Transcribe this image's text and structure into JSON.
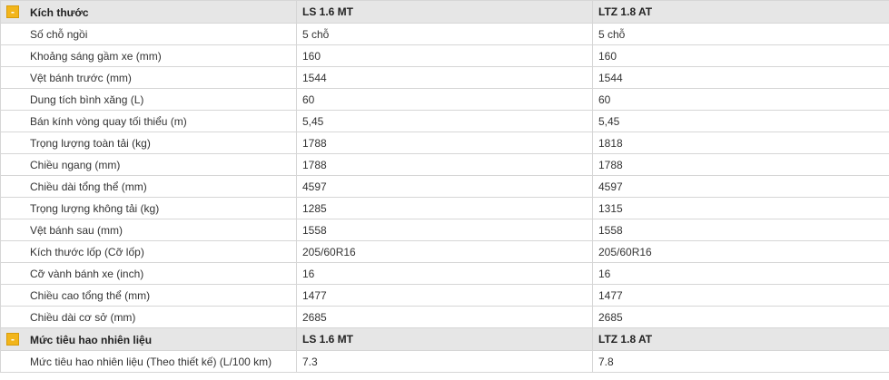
{
  "sections": [
    {
      "title": "Kích thước",
      "toggle": "-",
      "col1": "LS 1.6 MT",
      "col2": "LTZ 1.8 AT",
      "rows": [
        {
          "label": "Số chỗ ngồi",
          "v1": "5 chỗ",
          "v2": "5 chỗ"
        },
        {
          "label": "Khoảng sáng gầm xe (mm)",
          "v1": "160",
          "v2": "160"
        },
        {
          "label": "Vệt bánh trước (mm)",
          "v1": "1544",
          "v2": "1544"
        },
        {
          "label": "Dung tích bình xăng (L)",
          "v1": "60",
          "v2": "60"
        },
        {
          "label": "Bán kính vòng quay tối thiểu (m)",
          "v1": "5,45",
          "v2": "5,45"
        },
        {
          "label": "Trọng lượng toàn tải (kg)",
          "v1": "1788",
          "v2": "1818"
        },
        {
          "label": "Chiều ngang (mm)",
          "v1": "1788",
          "v2": "1788"
        },
        {
          "label": "Chiều dài tổng thể (mm)",
          "v1": "4597",
          "v2": "4597"
        },
        {
          "label": "Trọng lượng không tải (kg)",
          "v1": "1285",
          "v2": "1315"
        },
        {
          "label": "Vệt bánh sau (mm)",
          "v1": "1558",
          "v2": "1558"
        },
        {
          "label": "Kích thước lốp (Cỡ lốp)",
          "v1": "205/60R16",
          "v2": "205/60R16"
        },
        {
          "label": "Cỡ vành bánh xe (inch)",
          "v1": "16",
          "v2": "16"
        },
        {
          "label": "Chiều cao tổng thể (mm)",
          "v1": "1477",
          "v2": "1477"
        },
        {
          "label": "Chiều dài cơ sở (mm)",
          "v1": "2685",
          "v2": "2685"
        }
      ]
    },
    {
      "title": "Mức tiêu hao nhiên liệu",
      "toggle": "-",
      "col1": "LS 1.6 MT",
      "col2": "LTZ 1.8 AT",
      "rows": [
        {
          "label": "Mức tiêu hao nhiên liệu (Theo thiết kế) (L/100 km)",
          "v1": "7.3",
          "v2": "7.8"
        }
      ]
    }
  ],
  "colors": {
    "toggle_bg": "#f2b51b",
    "header_bg": "#e6e6e6",
    "border": "#d6d6d6"
  }
}
